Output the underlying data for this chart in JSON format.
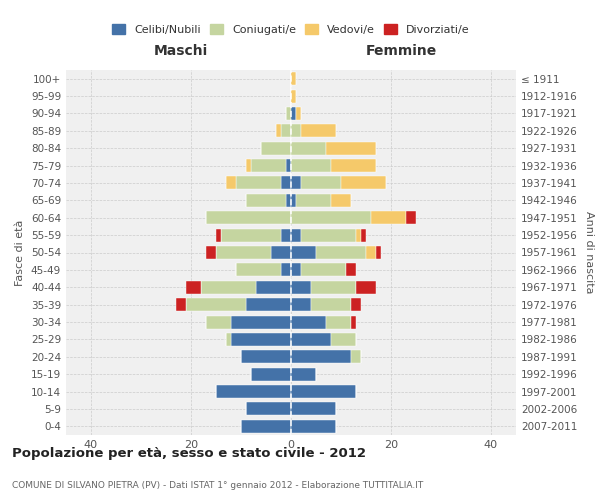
{
  "age_groups": [
    "0-4",
    "5-9",
    "10-14",
    "15-19",
    "20-24",
    "25-29",
    "30-34",
    "35-39",
    "40-44",
    "45-49",
    "50-54",
    "55-59",
    "60-64",
    "65-69",
    "70-74",
    "75-79",
    "80-84",
    "85-89",
    "90-94",
    "95-99",
    "100+"
  ],
  "birth_years": [
    "2007-2011",
    "2002-2006",
    "1997-2001",
    "1992-1996",
    "1987-1991",
    "1982-1986",
    "1977-1981",
    "1972-1976",
    "1967-1971",
    "1962-1966",
    "1957-1961",
    "1952-1956",
    "1947-1951",
    "1942-1946",
    "1937-1941",
    "1932-1936",
    "1927-1931",
    "1922-1926",
    "1917-1921",
    "1912-1916",
    "≤ 1911"
  ],
  "male": {
    "celibi": [
      10,
      9,
      15,
      8,
      10,
      12,
      12,
      9,
      7,
      2,
      4,
      2,
      0,
      1,
      2,
      1,
      0,
      0,
      0,
      0,
      0
    ],
    "coniugati": [
      0,
      0,
      0,
      0,
      0,
      1,
      5,
      12,
      11,
      9,
      11,
      12,
      17,
      8,
      9,
      7,
      6,
      2,
      1,
      0,
      0
    ],
    "vedovi": [
      0,
      0,
      0,
      0,
      0,
      0,
      0,
      0,
      0,
      0,
      0,
      0,
      0,
      0,
      2,
      1,
      0,
      1,
      0,
      0,
      0
    ],
    "divorziati": [
      0,
      0,
      0,
      0,
      0,
      0,
      0,
      2,
      3,
      0,
      2,
      1,
      0,
      0,
      0,
      0,
      0,
      0,
      0,
      0,
      0
    ]
  },
  "female": {
    "nubili": [
      9,
      9,
      13,
      5,
      12,
      8,
      7,
      4,
      4,
      2,
      5,
      2,
      0,
      1,
      2,
      0,
      0,
      0,
      1,
      0,
      0
    ],
    "coniugate": [
      0,
      0,
      0,
      0,
      2,
      5,
      5,
      8,
      9,
      9,
      10,
      11,
      16,
      7,
      8,
      8,
      7,
      2,
      0,
      0,
      0
    ],
    "vedove": [
      0,
      0,
      0,
      0,
      0,
      0,
      0,
      0,
      0,
      0,
      2,
      1,
      7,
      4,
      9,
      9,
      10,
      7,
      1,
      1,
      1
    ],
    "divorziate": [
      0,
      0,
      0,
      0,
      0,
      0,
      1,
      2,
      4,
      2,
      1,
      1,
      2,
      0,
      0,
      0,
      0,
      0,
      0,
      0,
      0
    ]
  },
  "colors": {
    "celibi": "#4472a8",
    "coniugati": "#c5d5a0",
    "vedovi": "#f5c96a",
    "divorziati": "#cc2222"
  },
  "xlim": 45,
  "title": "Popolazione per età, sesso e stato civile - 2012",
  "subtitle": "COMUNE DI SILVANO PIETRA (PV) - Dati ISTAT 1° gennaio 2012 - Elaborazione TUTTITALIA.IT",
  "ylabel_left": "Fasce di età",
  "ylabel_right": "Anni di nascita",
  "xlabel_male": "Maschi",
  "xlabel_female": "Femmine",
  "bg_color": "#ffffff",
  "grid_color": "#cccccc"
}
